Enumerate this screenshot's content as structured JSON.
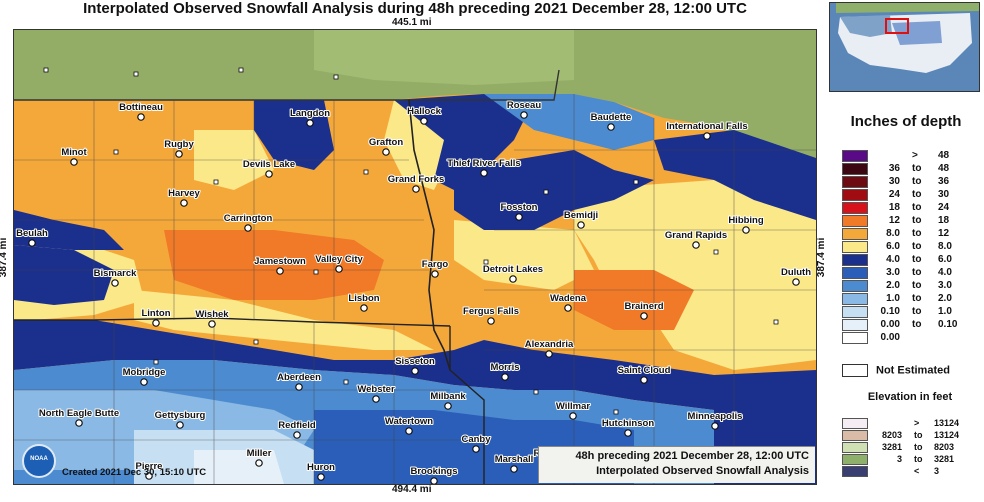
{
  "title": "Interpolated Observed Snowfall Analysis during 48h preceding 2021 December 28, 12:00 UTC",
  "distances": {
    "top": "445.1 mi",
    "bottom": "494.4 mi",
    "left": "387.4 mi",
    "right": "387.4 mi"
  },
  "info": {
    "line1": "48h preceding 2021 December 28, 12:00 UTC",
    "line2": "Interpolated Observed Snowfall Analysis"
  },
  "created": "Created 2021 Dec 30, 15:10 UTC",
  "logo_text": "NOAA",
  "legend": {
    "title": "Inches of depth",
    "rows": [
      {
        "lo": "",
        "to": ">",
        "hi": "48",
        "color": "#5a0a86"
      },
      {
        "lo": "36",
        "to": "to",
        "hi": "48",
        "color": "#3d0712"
      },
      {
        "lo": "30",
        "to": "to",
        "hi": "36",
        "color": "#6e0a12"
      },
      {
        "lo": "24",
        "to": "to",
        "hi": "30",
        "color": "#a10c12"
      },
      {
        "lo": "18",
        "to": "to",
        "hi": "24",
        "color": "#d8121a"
      },
      {
        "lo": "12",
        "to": "to",
        "hi": "18",
        "color": "#f07a28"
      },
      {
        "lo": "8.0",
        "to": "to",
        "hi": "12",
        "color": "#f5a83a"
      },
      {
        "lo": "6.0",
        "to": "to",
        "hi": "8.0",
        "color": "#fbe889"
      },
      {
        "lo": "4.0",
        "to": "to",
        "hi": "6.0",
        "color": "#1b2f8c"
      },
      {
        "lo": "3.0",
        "to": "to",
        "hi": "4.0",
        "color": "#2a5eb8"
      },
      {
        "lo": "2.0",
        "to": "to",
        "hi": "3.0",
        "color": "#4d8bd0"
      },
      {
        "lo": "1.0",
        "to": "to",
        "hi": "2.0",
        "color": "#8ab9e5"
      },
      {
        "lo": "0.10",
        "to": "to",
        "hi": "1.0",
        "color": "#c7dff2"
      },
      {
        "lo": "0.00",
        "to": "to",
        "hi": "0.10",
        "color": "#e6f0f9"
      },
      {
        "lo": "0.00",
        "to": "",
        "hi": "",
        "color": "#ffffff"
      }
    ],
    "not_estimated": "Not Estimated"
  },
  "elevation": {
    "title": "Elevation in feet",
    "rows": [
      {
        "lo": "",
        "to": ">",
        "hi": "13124",
        "color": "#f4eef2"
      },
      {
        "lo": "8203",
        "to": "to",
        "hi": "13124",
        "color": "#d9bba8"
      },
      {
        "lo": "3281",
        "to": "to",
        "hi": "8203",
        "color": "#cfe0b4"
      },
      {
        "lo": "3",
        "to": "to",
        "hi": "3281",
        "color": "#8fb06a"
      },
      {
        "lo": "",
        "to": "<",
        "hi": "3",
        "color": "#3a3f72"
      }
    ]
  },
  "cities": [
    {
      "name": "Bottineau",
      "icon": "circle-icon"
    },
    {
      "name": "Langdon",
      "icon": "circle-icon"
    },
    {
      "name": "Hallock",
      "icon": "circle-icon"
    },
    {
      "name": "Roseau",
      "icon": "circle-icon"
    },
    {
      "name": "Baudette",
      "icon": "circle-icon"
    },
    {
      "name": "International Falls",
      "icon": "circle-icon"
    },
    {
      "name": "Minot",
      "icon": "circle-icon"
    },
    {
      "name": "Rugby",
      "icon": "circle-icon"
    },
    {
      "name": "Grafton",
      "icon": "circle-icon"
    },
    {
      "name": "Devils Lake",
      "icon": "circle-icon"
    },
    {
      "name": "Thief River Falls",
      "icon": "circle-icon"
    },
    {
      "name": "Grand Forks",
      "icon": "circle-icon"
    },
    {
      "name": "Harvey",
      "icon": "circle-icon"
    },
    {
      "name": "Fosston",
      "icon": "circle-icon"
    },
    {
      "name": "Bemidji",
      "icon": "circle-icon"
    },
    {
      "name": "Hibbing",
      "icon": "circle-icon"
    },
    {
      "name": "Carrington",
      "icon": "circle-icon"
    },
    {
      "name": "Beulah",
      "icon": "circle-icon"
    },
    {
      "name": "Grand Rapids",
      "icon": "circle-icon"
    },
    {
      "name": "Jamestown",
      "icon": "circle-icon"
    },
    {
      "name": "Valley City",
      "icon": "circle-icon"
    },
    {
      "name": "Fargo",
      "icon": "circle-icon"
    },
    {
      "name": "Detroit Lakes",
      "icon": "circle-icon"
    },
    {
      "name": "Duluth",
      "icon": "circle-icon"
    },
    {
      "name": "Bismarck",
      "icon": "circle-icon"
    },
    {
      "name": "Wadena",
      "icon": "circle-icon"
    },
    {
      "name": "Lisbon",
      "icon": "circle-icon"
    },
    {
      "name": "Fergus Falls",
      "icon": "circle-icon"
    },
    {
      "name": "Brainerd",
      "icon": "circle-icon"
    },
    {
      "name": "Linton",
      "icon": "circle-icon"
    },
    {
      "name": "Wishek",
      "icon": "circle-icon"
    },
    {
      "name": "Alexandria",
      "icon": "circle-icon"
    },
    {
      "name": "Sisseton",
      "icon": "circle-icon"
    },
    {
      "name": "Mobridge",
      "icon": "circle-icon"
    },
    {
      "name": "Aberdeen",
      "icon": "circle-icon"
    },
    {
      "name": "Morris",
      "icon": "circle-icon"
    },
    {
      "name": "Saint Cloud",
      "icon": "circle-icon"
    },
    {
      "name": "Webster",
      "icon": "circle-icon"
    },
    {
      "name": "Milbank",
      "icon": "circle-icon"
    },
    {
      "name": "North Eagle Butte",
      "icon": "circle-icon"
    },
    {
      "name": "Gettysburg",
      "icon": "circle-icon"
    },
    {
      "name": "Willmar",
      "icon": "circle-icon"
    },
    {
      "name": "Redfield",
      "icon": "circle-icon"
    },
    {
      "name": "Watertown",
      "icon": "circle-icon"
    },
    {
      "name": "Hutchinson",
      "icon": "circle-icon"
    },
    {
      "name": "Minneapolis",
      "icon": "circle-icon"
    },
    {
      "name": "Canby",
      "icon": "circle-icon"
    },
    {
      "name": "Redwood Falls",
      "icon": "circle-icon"
    },
    {
      "name": "Miller",
      "icon": "circle-icon"
    },
    {
      "name": "Pierre",
      "icon": "circle-icon"
    },
    {
      "name": "Huron",
      "icon": "circle-icon"
    },
    {
      "name": "Brookings",
      "icon": "circle-icon"
    },
    {
      "name": "Marshall",
      "icon": "circle-icon"
    }
  ]
}
